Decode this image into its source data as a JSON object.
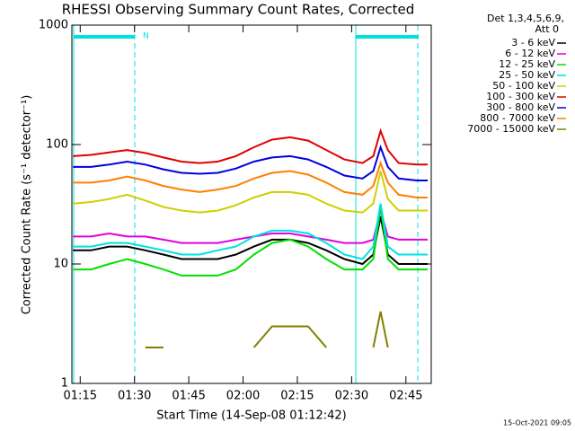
{
  "chart_data": {
    "type": "line",
    "title": "RHESSI Observing Summary Count Rates, Corrected",
    "x_label": "Start Time (14-Sep-08 01:12:42)",
    "y_label": "Corrected Count Rate (s⁻¹ detector⁻¹)",
    "legend_title": [
      "Det 1,3,4,5,6,9,",
      "Att 0"
    ],
    "annotation": "N",
    "footer": "15-Oct-2021 09:05",
    "log_y": true,
    "x": [
      73,
      78,
      83,
      88,
      93,
      98,
      103,
      108,
      113,
      118,
      123,
      128,
      133,
      138,
      143,
      148,
      153,
      156,
      158,
      160,
      163,
      168,
      171
    ],
    "xlim": [
      72.7,
      172
    ],
    "xticks": [
      {
        "value": 75,
        "label": "01:15"
      },
      {
        "value": 90,
        "label": "01:30"
      },
      {
        "value": 105,
        "label": "01:45"
      },
      {
        "value": 120,
        "label": "02:00"
      },
      {
        "value": 135,
        "label": "02:15"
      },
      {
        "value": 150,
        "label": "02:30"
      },
      {
        "value": 165,
        "label": "02:45"
      }
    ],
    "ylim": [
      1,
      1000
    ],
    "yticks": [
      1,
      10,
      100,
      1000
    ],
    "series": [
      {
        "name": "3 - 6 keV",
        "color": "#000000",
        "values": [
          13,
          13,
          14,
          14,
          13,
          12,
          11,
          11,
          11,
          12,
          14,
          16,
          16,
          15,
          13,
          11,
          10,
          12,
          25,
          12,
          10,
          10,
          10
        ]
      },
      {
        "name": "6 - 12 keV",
        "color": "#e000e0",
        "values": [
          17,
          17,
          18,
          17,
          17,
          16,
          15,
          15,
          15,
          16,
          17,
          18,
          18,
          17,
          16,
          15,
          15,
          16,
          28,
          17,
          16,
          16,
          16
        ]
      },
      {
        "name": "12 - 25 keV",
        "color": "#00e000",
        "values": [
          9,
          9,
          10,
          11,
          10,
          9,
          8,
          8,
          8,
          9,
          12,
          15,
          16,
          14,
          11,
          9,
          9,
          11,
          30,
          11,
          9,
          9,
          9
        ]
      },
      {
        "name": "25 - 50 keV",
        "color": "#00e0e0",
        "values": [
          14,
          14,
          15,
          15,
          14,
          13,
          12,
          12,
          13,
          14,
          17,
          19,
          19,
          18,
          15,
          12,
          11,
          14,
          32,
          14,
          12,
          12,
          12
        ]
      },
      {
        "name": "50 - 100 keV",
        "color": "#d0d000",
        "values": [
          32,
          33,
          35,
          38,
          34,
          30,
          28,
          27,
          28,
          31,
          36,
          40,
          40,
          38,
          32,
          28,
          27,
          32,
          60,
          35,
          28,
          28,
          28
        ]
      },
      {
        "name": "100 - 300 keV",
        "color": "#e00000",
        "values": [
          80,
          82,
          86,
          90,
          85,
          78,
          72,
          70,
          72,
          80,
          95,
          110,
          115,
          108,
          90,
          75,
          70,
          80,
          130,
          90,
          70,
          68,
          68
        ]
      },
      {
        "name": "300 - 800 keV",
        "color": "#0000e0",
        "values": [
          65,
          65,
          68,
          72,
          68,
          62,
          58,
          57,
          58,
          63,
          72,
          78,
          80,
          75,
          65,
          55,
          52,
          60,
          95,
          65,
          52,
          50,
          50
        ]
      },
      {
        "name": "800 - 7000 keV",
        "color": "#ff8000",
        "values": [
          48,
          48,
          50,
          54,
          50,
          45,
          42,
          40,
          42,
          45,
          52,
          58,
          60,
          56,
          48,
          40,
          38,
          45,
          70,
          48,
          38,
          36,
          36
        ]
      },
      {
        "name": "7000 - 15000 keV",
        "color": "#808000",
        "values": [
          null,
          null,
          null,
          null,
          2,
          2,
          null,
          null,
          null,
          null,
          2,
          3,
          3,
          3,
          2,
          null,
          null,
          2,
          4,
          2,
          null,
          null,
          null
        ]
      }
    ]
  }
}
